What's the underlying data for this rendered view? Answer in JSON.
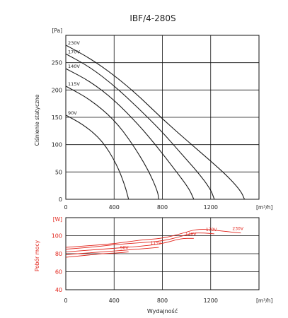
{
  "title": "IBF/4-280S",
  "chart_data": [
    {
      "type": "line",
      "name": "pressure",
      "ylabel": "Ciśnienie statyczne",
      "yunit": "[Pa]",
      "xunit": "[m³/h]",
      "xlim": [
        0,
        1600
      ],
      "ylim": [
        0,
        300
      ],
      "xticks": [
        0,
        400,
        800,
        1200
      ],
      "yticks": [
        0,
        50,
        100,
        150,
        200,
        250
      ],
      "grid": true,
      "color": "#1a1a1a",
      "series": [
        {
          "name": "230V",
          "points": [
            [
              0,
              282
            ],
            [
              200,
              258
            ],
            [
              400,
              227
            ],
            [
              600,
              190
            ],
            [
              800,
              147
            ],
            [
              1000,
              108
            ],
            [
              1200,
              70
            ],
            [
              1350,
              40
            ],
            [
              1450,
              15
            ],
            [
              1480,
              0
            ]
          ]
        },
        {
          "name": "170V",
          "points": [
            [
              0,
              266
            ],
            [
              200,
              242
            ],
            [
              400,
              208
            ],
            [
              600,
              167
            ],
            [
              800,
              123
            ],
            [
              950,
              85
            ],
            [
              1100,
              48
            ],
            [
              1200,
              18
            ],
            [
              1230,
              0
            ]
          ]
        },
        {
          "name": "140V",
          "points": [
            [
              0,
              239
            ],
            [
              200,
              216
            ],
            [
              400,
              182
            ],
            [
              600,
              137
            ],
            [
              750,
              98
            ],
            [
              900,
              55
            ],
            [
              1020,
              20
            ],
            [
              1060,
              0
            ]
          ]
        },
        {
          "name": "115V",
          "points": [
            [
              0,
              207
            ],
            [
              200,
              183
            ],
            [
              400,
              146
            ],
            [
              550,
              102
            ],
            [
              680,
              55
            ],
            [
              760,
              15
            ],
            [
              770,
              0
            ]
          ]
        },
        {
          "name": "90V",
          "points": [
            [
              0,
              154
            ],
            [
              150,
              136
            ],
            [
              300,
              108
            ],
            [
              420,
              65
            ],
            [
              490,
              25
            ],
            [
              520,
              0
            ]
          ]
        }
      ]
    },
    {
      "type": "line",
      "name": "power",
      "ylabel": "Pobór mocy",
      "yunit": "[W]",
      "xunit": "[m³/h]",
      "xlabel": "Wydajność",
      "xlim": [
        0,
        1600
      ],
      "ylim": [
        40,
        120
      ],
      "xticks": [
        0,
        400,
        800,
        1200
      ],
      "yticks": [
        40,
        60,
        80,
        100
      ],
      "grid": true,
      "color": "#e2231a",
      "series": [
        {
          "name": "230V",
          "points": [
            [
              0,
              87
            ],
            [
              200,
              89
            ],
            [
              400,
              91
            ],
            [
              600,
              95
            ],
            [
              800,
              97
            ],
            [
              950,
              102
            ],
            [
              1100,
              108
            ],
            [
              1300,
              105
            ],
            [
              1450,
              103
            ]
          ]
        },
        {
          "name": "170V",
          "points": [
            [
              0,
              85
            ],
            [
              200,
              87
            ],
            [
              400,
              90
            ],
            [
              600,
              92
            ],
            [
              800,
              94
            ],
            [
              950,
              99
            ],
            [
              1050,
              103
            ],
            [
              1150,
              103
            ],
            [
              1230,
              102
            ]
          ]
        },
        {
          "name": "140V",
          "points": [
            [
              0,
              82
            ],
            [
              200,
              84
            ],
            [
              400,
              86
            ],
            [
              600,
              88
            ],
            [
              800,
              91
            ],
            [
              950,
              97
            ],
            [
              1060,
              97
            ]
          ]
        },
        {
          "name": "115V",
          "points": [
            [
              0,
              79
            ],
            [
              200,
              81
            ],
            [
              400,
              83
            ],
            [
              600,
              85
            ],
            [
              770,
              87
            ]
          ]
        },
        {
          "name": "90V",
          "points": [
            [
              0,
              76
            ],
            [
              150,
              78
            ],
            [
              300,
              80
            ],
            [
              450,
              81
            ],
            [
              520,
              82
            ]
          ]
        }
      ]
    }
  ]
}
